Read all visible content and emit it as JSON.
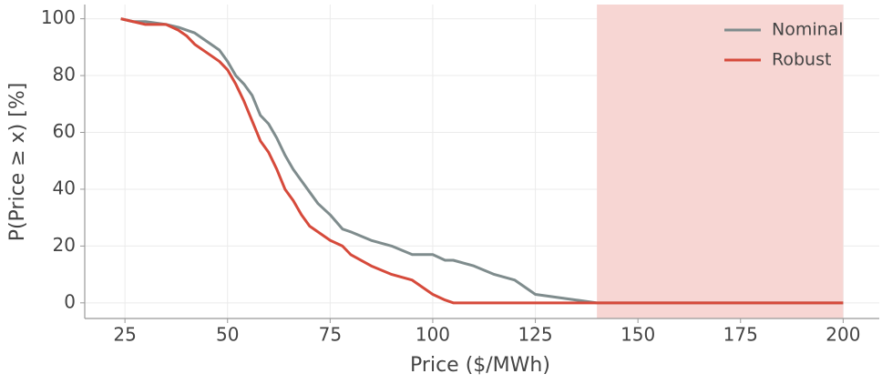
{
  "chart_data": {
    "type": "line",
    "xlabel": "Price ($/MWh)",
    "ylabel": "P(Price ≥ x) [%]",
    "x": [
      24,
      27,
      30,
      35,
      38,
      40,
      42,
      45,
      48,
      50,
      52,
      54,
      56,
      58,
      60,
      62,
      64,
      66,
      68,
      70,
      72,
      75,
      78,
      80,
      85,
      90,
      95,
      100,
      103,
      105,
      110,
      115,
      120,
      125,
      130,
      135,
      140,
      150,
      200
    ],
    "series": [
      {
        "name": "Nominal",
        "color": "#7f8c8d",
        "values": [
          100,
          99,
          99,
          98,
          97,
          96,
          95,
          92,
          89,
          85,
          80,
          77,
          73,
          66,
          63,
          58,
          52,
          47,
          43,
          39,
          35,
          31,
          26,
          25,
          22,
          20,
          17,
          17,
          15,
          15,
          13,
          10,
          8,
          3,
          2,
          1,
          0,
          0,
          0
        ]
      },
      {
        "name": "Robust",
        "color": "#d64a3b",
        "values": [
          100,
          99,
          98,
          98,
          96,
          94,
          91,
          88,
          85,
          82,
          77,
          71,
          64,
          57,
          53,
          47,
          40,
          36,
          31,
          27,
          25,
          22,
          20,
          17,
          13,
          10,
          8,
          3,
          1,
          0,
          0,
          0,
          0,
          0,
          0,
          0,
          0,
          0,
          0
        ]
      }
    ],
    "shaded_region": {
      "xmin": 140,
      "xmax": 200,
      "color": "#f7d6d3"
    },
    "xlim": [
      15.2,
      208.8
    ],
    "ylim": [
      -5.5,
      105
    ],
    "xticks": [
      25,
      50,
      75,
      100,
      125,
      150,
      175,
      200
    ],
    "yticks": [
      0,
      20,
      40,
      60,
      80,
      100
    ],
    "grid": true,
    "legend": "upper right"
  }
}
